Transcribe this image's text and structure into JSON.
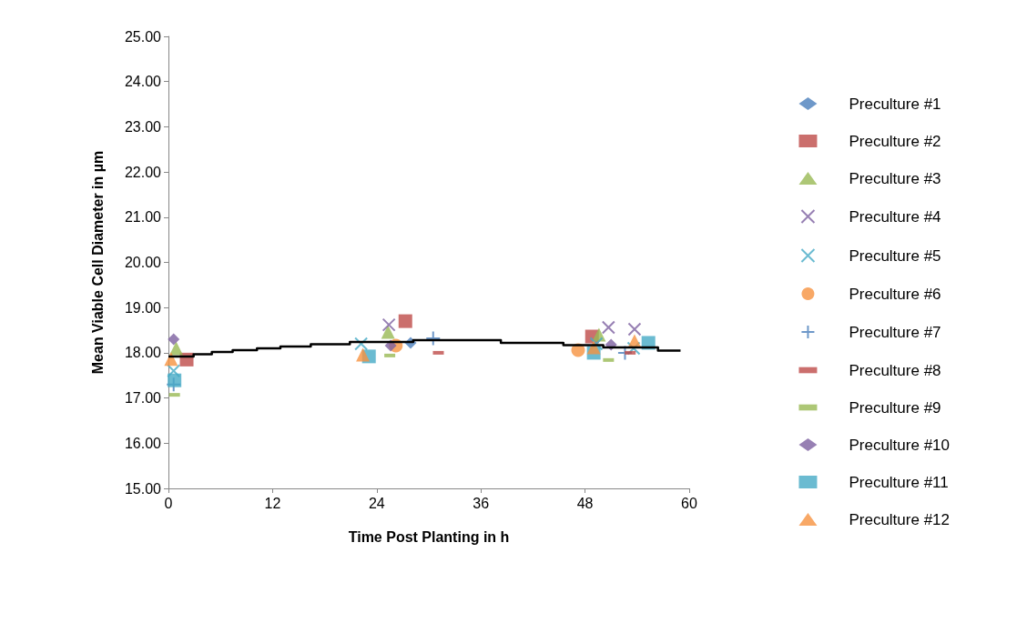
{
  "chart_data": {
    "type": "scatter",
    "xlabel": "Time Post Planting in h",
    "ylabel": "Mean Viable Cell Diameter in µm",
    "xlim": [
      0,
      60
    ],
    "xticks": [
      0,
      12,
      24,
      36,
      48,
      60
    ],
    "ylim": [
      15,
      25
    ],
    "yticks": [
      {
        "value": 15,
        "label": "15.00"
      },
      {
        "value": 16,
        "label": "16.00"
      },
      {
        "value": 17,
        "label": "17.00"
      },
      {
        "value": 18,
        "label": "18.00"
      },
      {
        "value": 19,
        "label": "19.00"
      },
      {
        "value": 20,
        "label": "20.00"
      },
      {
        "value": 21,
        "label": "21.00"
      },
      {
        "value": 22,
        "label": "22.00"
      },
      {
        "value": 23,
        "label": "23.00"
      },
      {
        "value": 24,
        "label": "24.00"
      },
      {
        "value": 25,
        "label": "25.00"
      }
    ],
    "grid": false,
    "legend": "right",
    "series": [
      {
        "name": "Preculture #1",
        "color": "#4a7ebb",
        "marker": "diamond",
        "x": [
          27.9
        ],
        "values": [
          18.22
        ]
      },
      {
        "name": "Preculture #2",
        "color": "#be4b48",
        "marker": "square",
        "x": [
          2.1,
          27.3,
          48.8
        ],
        "values": [
          17.85,
          18.7,
          18.36
        ]
      },
      {
        "name": "Preculture #3",
        "color": "#98b954",
        "marker": "triangle",
        "x": [
          0.9,
          25.3,
          49.6
        ],
        "values": [
          18.1,
          18.46,
          18.4
        ]
      },
      {
        "name": "Preculture #4",
        "color": "#7d60a0",
        "marker": "cross",
        "x": [
          25.4,
          50.7,
          53.7
        ],
        "values": [
          18.62,
          18.56,
          18.52
        ]
      },
      {
        "name": "Preculture #5",
        "color": "#46aac5",
        "marker": "cross",
        "x": [
          0.6,
          22.2,
          49.3,
          53.6
        ],
        "values": [
          17.6,
          18.2,
          18.2,
          18.1
        ]
      },
      {
        "name": "Preculture #6",
        "color": "#f69240",
        "marker": "circle",
        "x": [
          26.2,
          47.2
        ],
        "values": [
          18.16,
          18.06
        ]
      },
      {
        "name": "Preculture #7",
        "color": "#4a7ebb",
        "marker": "plus",
        "x": [
          0.6,
          30.5,
          52.6
        ],
        "values": [
          17.3,
          18.32,
          18.0
        ]
      },
      {
        "name": "Preculture #8",
        "color": "#be4b48",
        "x": [
          31.1,
          53.2
        ],
        "values": [
          18.0,
          18.0
        ]
      },
      {
        "name": "Preculture #9",
        "color": "#98b954",
        "x": [
          0.7,
          25.5,
          50.7
        ],
        "values": [
          17.07,
          17.94,
          17.84
        ]
      },
      {
        "name": "Preculture #10",
        "color": "#7d60a0",
        "marker": "diamond",
        "x": [
          0.6,
          25.6,
          51.0
        ],
        "values": [
          18.3,
          18.16,
          18.18
        ]
      },
      {
        "name": "Preculture #11",
        "color": "#46aac5",
        "marker": "square",
        "x": [
          0.7,
          23.1,
          49.0,
          55.3
        ],
        "values": [
          17.39,
          17.92,
          18.0,
          18.22
        ]
      },
      {
        "name": "Preculture #12",
        "color": "#f69240",
        "marker": "triangle",
        "x": [
          0.3,
          22.4,
          49.0,
          53.7
        ],
        "values": [
          17.86,
          17.96,
          18.12,
          18.26
        ]
      },
      {
        "type": "step",
        "color": "#000000",
        "marker": "none",
        "x": [
          0,
          2.9,
          5.0,
          7.4,
          10.2,
          12.9,
          16.4,
          20.9,
          28.2,
          38.3,
          45.5,
          50.1,
          56.4,
          59.0
        ],
        "values": [
          17.92,
          17.97,
          18.02,
          18.06,
          18.1,
          18.14,
          18.19,
          18.24,
          18.28,
          18.22,
          18.17,
          18.12,
          18.05,
          18.05
        ]
      }
    ]
  }
}
